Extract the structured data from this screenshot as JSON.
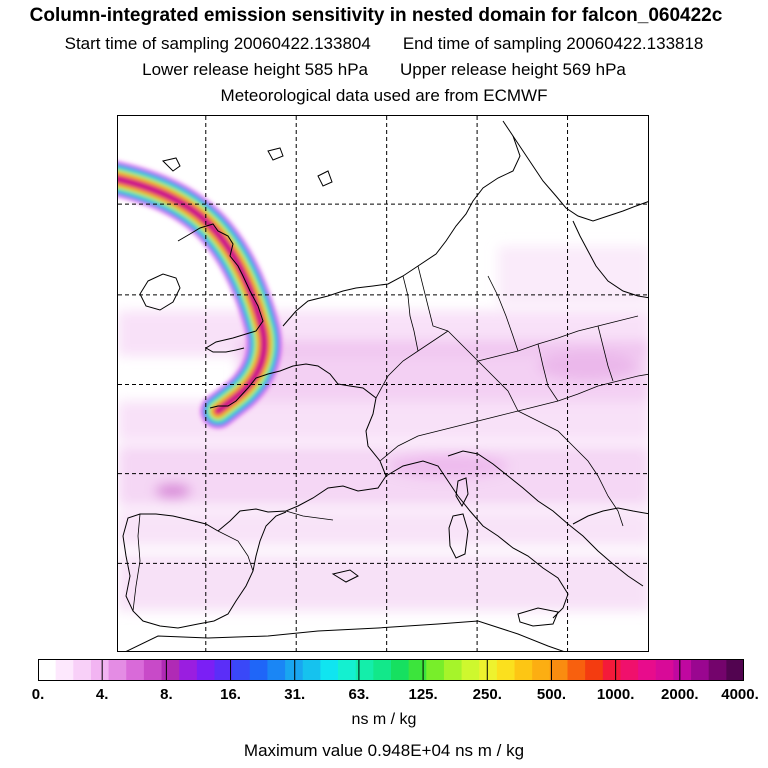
{
  "header": {
    "title": "Column-integrated emission sensitivity in nested domain for falcon_060422c",
    "start_label": "Start time of sampling 20060422.133804",
    "end_label": "End time of sampling 20060422.133818",
    "lower_label": "Lower release height  585 hPa",
    "upper_label": "Upper release height  569 hPa",
    "met_label": "Meteorological data used are from ECMWF"
  },
  "legend": {
    "tick_labels": [
      "0.",
      "4.",
      "8.",
      "16.",
      "31.",
      "63.",
      "125.",
      "250.",
      "500.",
      "1000.",
      "2000.",
      "4000."
    ],
    "colors": [
      "#ffffff",
      "#fde8fd",
      "#f8d0f8",
      "#f2b4f2",
      "#e48ce4",
      "#d96ad9",
      "#c84ac8",
      "#b02ab5",
      "#9a1ee0",
      "#7b1ff5",
      "#5b2ef8",
      "#3a48f8",
      "#1f66f8",
      "#1a86f5",
      "#19a6f0",
      "#16c2ee",
      "#10e5f0",
      "#14f0d0",
      "#14eeaa",
      "#12e88a",
      "#16e060",
      "#3ce43c",
      "#78ee2a",
      "#a6f42a",
      "#cef82e",
      "#eef22e",
      "#fbe01e",
      "#fdc614",
      "#fcae12",
      "#fa8c10",
      "#f8600e",
      "#f43c10",
      "#f41a3a",
      "#f0106c",
      "#e80c8c",
      "#d80a98",
      "#c008a0",
      "#9a0690",
      "#74046c",
      "#520450"
    ],
    "unit": "ns m / kg",
    "max_value_label": "Maximum value  0.948E+04 ns m / kg"
  },
  "map": {
    "grid_x_fractions": [
      0.165,
      0.335,
      0.505,
      0.675,
      0.845
    ],
    "grid_y_fractions": [
      0.164,
      0.333,
      0.5,
      0.666,
      0.833
    ],
    "plume_colors": [
      "#e53ce5",
      "#4a3ef8",
      "#1aa4f2",
      "#16e8e8",
      "#2ee070",
      "#d8f62e",
      "#fbc414",
      "#f84a10",
      "#f0106c",
      "#b4089c"
    ]
  }
}
